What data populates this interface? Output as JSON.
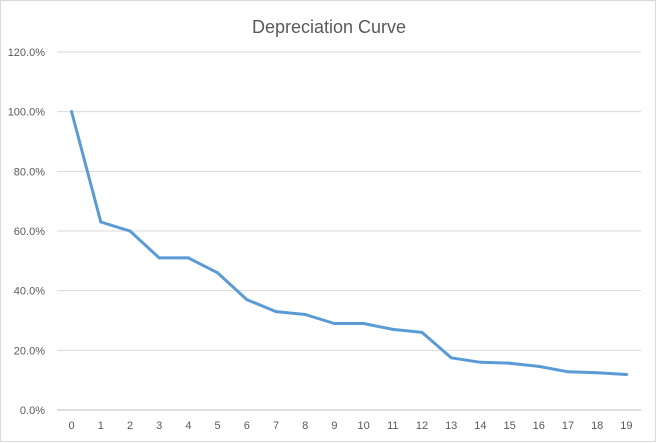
{
  "chart_data": {
    "type": "line",
    "title": "Depreciation Curve",
    "xlabel": "",
    "ylabel": "",
    "categories": [
      "0",
      "1",
      "2",
      "3",
      "4",
      "5",
      "6",
      "7",
      "8",
      "9",
      "10",
      "11",
      "12",
      "13",
      "14",
      "15",
      "16",
      "17",
      "18",
      "19"
    ],
    "series": [
      {
        "values": [
          100.0,
          63.0,
          60.0,
          51.0,
          51.0,
          46.0,
          37.0,
          33.0,
          32.0,
          29.0,
          29.0,
          27.0,
          26.0,
          17.5,
          16.0,
          15.7,
          14.6,
          12.8,
          12.5,
          11.9
        ]
      }
    ],
    "y_ticks": [
      "0.0%",
      "20.0%",
      "40.0%",
      "60.0%",
      "80.0%",
      "100.0%",
      "120.0%"
    ],
    "ylim": [
      0,
      120
    ],
    "y_unit": "percent",
    "grid": "horizontal",
    "legend": "none",
    "colors": {
      "series": "#5b9bd5",
      "gridline": "#d9d9d9",
      "text": "#595959"
    }
  }
}
